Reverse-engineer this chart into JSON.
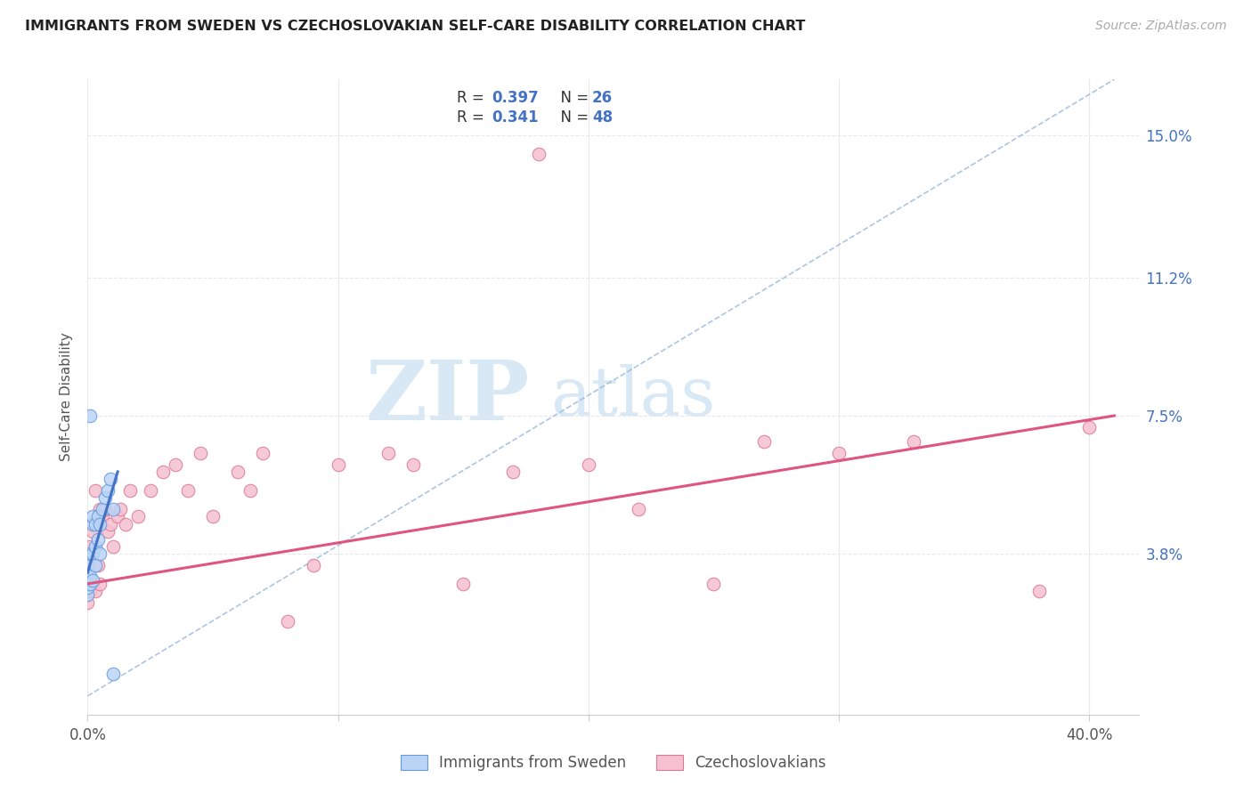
{
  "title": "IMMIGRANTS FROM SWEDEN VS CZECHOSLOVAKIAN SELF-CARE DISABILITY CORRELATION CHART",
  "source": "Source: ZipAtlas.com",
  "ylabel": "Self-Care Disability",
  "xlim": [
    0.0,
    0.42
  ],
  "ylim": [
    -0.005,
    0.165
  ],
  "background_color": "#ffffff",
  "grid_color": "#e8e8e8",
  "sweden_color": "#bad4f5",
  "sweden_edge_color": "#6699dd",
  "czech_color": "#f5c0cf",
  "czech_edge_color": "#dd7799",
  "legend_r1": "0.397",
  "legend_n1": "26",
  "legend_r2": "0.341",
  "legend_n2": "48",
  "sweden_line_color": "#4472c4",
  "czech_line_color": "#e05580",
  "dashed_line_color": "#a0c0e0",
  "watermark_zip": "ZIP",
  "watermark_atlas": "atlas",
  "watermark_color": "#d8e8f5",
  "right_y_ticks": [
    0.038,
    0.075,
    0.112,
    0.15
  ],
  "right_y_labels": [
    "3.8%",
    "7.5%",
    "11.2%",
    "15.0%"
  ],
  "x_ticks": [
    0.0,
    0.1,
    0.2,
    0.3,
    0.4
  ],
  "x_tick_labels": [
    "0.0%",
    "",
    "",
    "",
    "40.0%"
  ],
  "legend_label_sweden": "Immigrants from Sweden",
  "legend_label_czech": "Czechoslovakians",
  "sweden_x": [
    0.0,
    0.0,
    0.0,
    0.0,
    0.0,
    0.001,
    0.001,
    0.001,
    0.001,
    0.002,
    0.002,
    0.002,
    0.002,
    0.003,
    0.003,
    0.003,
    0.004,
    0.004,
    0.005,
    0.005,
    0.006,
    0.007,
    0.008,
    0.009,
    0.01,
    0.01
  ],
  "sweden_y": [
    0.027,
    0.029,
    0.031,
    0.033,
    0.035,
    0.03,
    0.032,
    0.038,
    0.075,
    0.031,
    0.038,
    0.046,
    0.048,
    0.035,
    0.04,
    0.046,
    0.042,
    0.048,
    0.038,
    0.046,
    0.05,
    0.053,
    0.055,
    0.058,
    0.05,
    0.006
  ],
  "czech_x": [
    0.0,
    0.0,
    0.0,
    0.001,
    0.001,
    0.002,
    0.002,
    0.003,
    0.003,
    0.004,
    0.004,
    0.005,
    0.005,
    0.006,
    0.007,
    0.008,
    0.009,
    0.01,
    0.012,
    0.013,
    0.015,
    0.017,
    0.02,
    0.025,
    0.03,
    0.035,
    0.04,
    0.045,
    0.05,
    0.06,
    0.065,
    0.07,
    0.08,
    0.09,
    0.1,
    0.12,
    0.13,
    0.15,
    0.17,
    0.18,
    0.2,
    0.22,
    0.25,
    0.27,
    0.3,
    0.33,
    0.38,
    0.4
  ],
  "czech_y": [
    0.025,
    0.03,
    0.034,
    0.028,
    0.04,
    0.03,
    0.044,
    0.028,
    0.055,
    0.035,
    0.046,
    0.03,
    0.05,
    0.048,
    0.05,
    0.044,
    0.046,
    0.04,
    0.048,
    0.05,
    0.046,
    0.055,
    0.048,
    0.055,
    0.06,
    0.062,
    0.055,
    0.065,
    0.048,
    0.06,
    0.055,
    0.065,
    0.02,
    0.035,
    0.062,
    0.065,
    0.062,
    0.03,
    0.06,
    0.145,
    0.062,
    0.05,
    0.03,
    0.068,
    0.065,
    0.068,
    0.028,
    0.072
  ],
  "sweden_line_x": [
    0.0,
    0.012
  ],
  "sweden_line_y": [
    0.033,
    0.06
  ],
  "czech_line_x": [
    0.0,
    0.41
  ],
  "czech_line_y": [
    0.03,
    0.075
  ],
  "dash_line_x": [
    0.0,
    0.41
  ],
  "dash_line_y": [
    0.0,
    0.165
  ]
}
